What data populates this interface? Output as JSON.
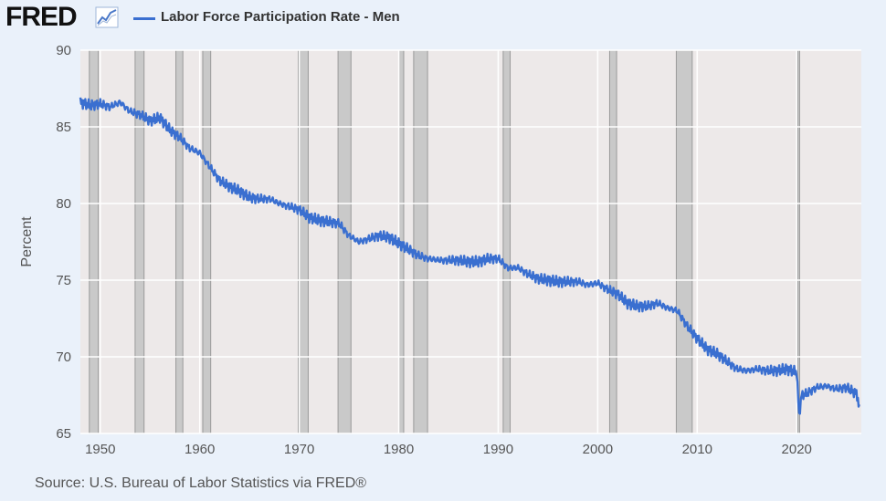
{
  "header": {
    "logo_text": "FRED",
    "logo_icon": "line-chart-icon"
  },
  "footer": {
    "source": "Source: U.S. Bureau of Labor Statistics via FRED®"
  },
  "colors": {
    "series": "#3a6fd0",
    "plot_bg": "#ede9e9",
    "recession": "#c9c9c9",
    "page_bg": "#eaf1fa"
  },
  "chart_data": {
    "type": "line",
    "title": "",
    "xlabel": "",
    "ylabel": "Percent",
    "xlim": [
      1948,
      2026.5
    ],
    "ylim": [
      65,
      90
    ],
    "grid": true,
    "legend": "top-left",
    "x_ticks": [
      1950,
      1960,
      1970,
      1980,
      1990,
      2000,
      2010,
      2020
    ],
    "y_ticks": [
      65,
      70,
      75,
      80,
      85,
      90
    ],
    "recessions": [
      [
        1948.9,
        1949.8
      ],
      [
        1953.5,
        1954.4
      ],
      [
        1957.6,
        1958.3
      ],
      [
        1960.3,
        1961.1
      ],
      [
        1969.9,
        1970.9
      ],
      [
        1973.9,
        1975.2
      ],
      [
        1980.0,
        1980.5
      ],
      [
        1981.5,
        1982.9
      ],
      [
        1990.5,
        1991.2
      ],
      [
        2001.2,
        2001.9
      ],
      [
        2007.9,
        2009.5
      ],
      [
        2020.1,
        2020.3
      ]
    ],
    "series": [
      {
        "name": "Labor Force Participation Rate - Men",
        "x": [
          1948,
          1949,
          1950,
          1951,
          1952,
          1953,
          1954,
          1955,
          1956,
          1957,
          1958,
          1959,
          1960,
          1961,
          1962,
          1963,
          1964,
          1965,
          1966,
          1967,
          1968,
          1969,
          1970,
          1971,
          1972,
          1973,
          1974,
          1975,
          1976,
          1977,
          1978,
          1979,
          1980,
          1981,
          1982,
          1983,
          1984,
          1985,
          1986,
          1987,
          1988,
          1989,
          1990,
          1991,
          1992,
          1993,
          1994,
          1995,
          1996,
          1997,
          1998,
          1999,
          2000,
          2001,
          2002,
          2003,
          2004,
          2005,
          2006,
          2007,
          2008,
          2009,
          2010,
          2011,
          2012,
          2013,
          2014,
          2015,
          2016,
          2017,
          2018,
          2019,
          2020,
          2020.25,
          2020.5,
          2021,
          2022,
          2023,
          2024,
          2025,
          2026,
          2026.3
        ],
        "values": [
          86.6,
          86.4,
          86.5,
          86.3,
          86.6,
          86.0,
          85.8,
          85.4,
          85.6,
          84.8,
          84.3,
          83.6,
          83.3,
          82.4,
          81.5,
          81.1,
          80.8,
          80.4,
          80.3,
          80.3,
          80.0,
          79.8,
          79.6,
          79.1,
          78.9,
          78.8,
          78.7,
          77.9,
          77.5,
          77.7,
          77.9,
          77.8,
          77.4,
          77.0,
          76.6,
          76.4,
          76.3,
          76.3,
          76.3,
          76.2,
          76.2,
          76.4,
          76.4,
          75.8,
          75.8,
          75.4,
          75.1,
          75.0,
          74.9,
          74.9,
          74.9,
          74.7,
          74.8,
          74.4,
          74.1,
          73.5,
          73.3,
          73.3,
          73.5,
          73.2,
          73.0,
          72.0,
          71.2,
          70.5,
          70.2,
          69.7,
          69.2,
          69.1,
          69.2,
          69.1,
          69.1,
          69.2,
          69.0,
          66.2,
          67.5,
          67.6,
          68.0,
          68.1,
          67.9,
          68.0,
          67.6,
          66.9
        ]
      }
    ]
  }
}
